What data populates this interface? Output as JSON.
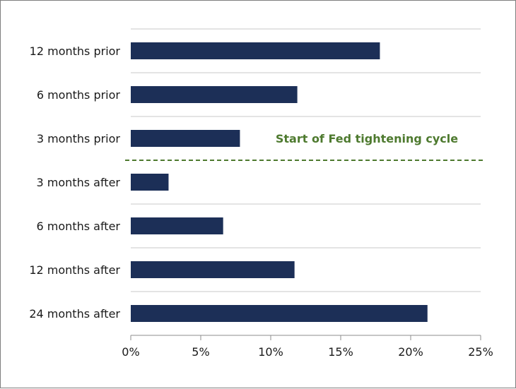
{
  "chart_data": {
    "type": "bar",
    "orientation": "horizontal",
    "categories": [
      "12 months prior",
      "6 months prior",
      "3 months prior",
      "3 months after",
      "6 months after",
      "12 months after",
      "24 months after"
    ],
    "values": [
      17.8,
      11.9,
      7.8,
      2.7,
      6.6,
      11.7,
      21.2
    ],
    "title": "",
    "xlabel": "",
    "ylabel": "",
    "xlim": [
      0,
      25
    ],
    "x_ticks": [
      0,
      5,
      10,
      15,
      20,
      25
    ],
    "x_tick_labels": [
      "0%",
      "5%",
      "10%",
      "15%",
      "20%",
      "25%"
    ],
    "grid": true,
    "bar_color": "#1c2f57",
    "annotation": {
      "text": "Start of Fed tightening cycle",
      "position": "between 3 months prior and 3 months after",
      "line_style": "dashed",
      "color": "#4e7a2f"
    }
  }
}
